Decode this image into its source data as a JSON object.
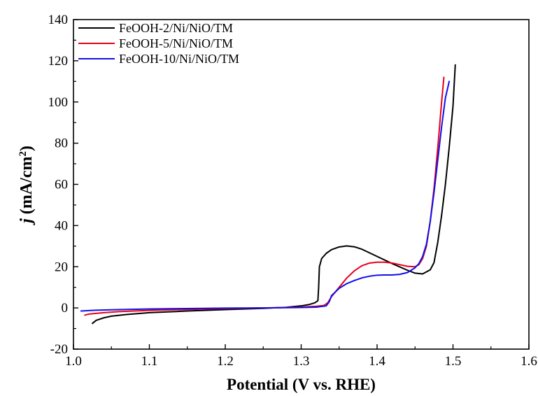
{
  "chart_data": {
    "type": "line",
    "title": "",
    "xlabel": "Potential (V vs. RHE)",
    "ylabel": {
      "italic": "j",
      "unit_open": " (mA/cm",
      "unit_sup": "2",
      "unit_close": ")"
    },
    "xlim": [
      1.0,
      1.6
    ],
    "ylim": [
      -20,
      140
    ],
    "xticks": [
      1.0,
      1.1,
      1.2,
      1.3,
      1.4,
      1.5,
      1.6
    ],
    "xtick_labels": [
      "1.0",
      "1.1",
      "1.2",
      "1.3",
      "1.4",
      "1.5",
      "1.6"
    ],
    "yticks": [
      -20,
      0,
      20,
      40,
      60,
      80,
      100,
      120,
      140
    ],
    "ytick_labels": [
      "-20",
      "0",
      "20",
      "40",
      "60",
      "80",
      "100",
      "120",
      "140"
    ],
    "grid": false,
    "legend_position": "top-left",
    "series": [
      {
        "name": "FeOOH-2/Ni/NiO/TM",
        "color": "#000000",
        "points": [
          [
            1.025,
            -7.5
          ],
          [
            1.03,
            -6.0
          ],
          [
            1.04,
            -4.8
          ],
          [
            1.05,
            -4.0
          ],
          [
            1.07,
            -3.2
          ],
          [
            1.1,
            -2.3
          ],
          [
            1.15,
            -1.5
          ],
          [
            1.2,
            -0.8
          ],
          [
            1.25,
            -0.2
          ],
          [
            1.28,
            0.3
          ],
          [
            1.3,
            1.0
          ],
          [
            1.31,
            1.6
          ],
          [
            1.318,
            2.5
          ],
          [
            1.322,
            3.5
          ],
          [
            1.323,
            10.0
          ],
          [
            1.324,
            20.0
          ],
          [
            1.327,
            24.0
          ],
          [
            1.333,
            26.5
          ],
          [
            1.34,
            28.3
          ],
          [
            1.35,
            29.6
          ],
          [
            1.36,
            30.1
          ],
          [
            1.37,
            29.7
          ],
          [
            1.38,
            28.5
          ],
          [
            1.4,
            25.0
          ],
          [
            1.42,
            21.5
          ],
          [
            1.44,
            18.3
          ],
          [
            1.45,
            16.9
          ],
          [
            1.46,
            16.5
          ],
          [
            1.47,
            18.5
          ],
          [
            1.475,
            22.0
          ],
          [
            1.48,
            32.0
          ],
          [
            1.485,
            45.0
          ],
          [
            1.49,
            60.0
          ],
          [
            1.495,
            78.0
          ],
          [
            1.5,
            98.0
          ],
          [
            1.503,
            118.0
          ]
        ]
      },
      {
        "name": "FeOOH-5/Ni/NiO/TM",
        "color": "#e8001c",
        "points": [
          [
            1.015,
            -3.5
          ],
          [
            1.02,
            -3.0
          ],
          [
            1.04,
            -2.3
          ],
          [
            1.06,
            -1.8
          ],
          [
            1.1,
            -1.2
          ],
          [
            1.15,
            -0.7
          ],
          [
            1.2,
            -0.3
          ],
          [
            1.25,
            0.0
          ],
          [
            1.3,
            0.4
          ],
          [
            1.32,
            0.8
          ],
          [
            1.33,
            1.2
          ],
          [
            1.335,
            2.5
          ],
          [
            1.34,
            5.5
          ],
          [
            1.35,
            10.0
          ],
          [
            1.36,
            14.5
          ],
          [
            1.37,
            18.0
          ],
          [
            1.38,
            20.5
          ],
          [
            1.39,
            21.8
          ],
          [
            1.4,
            22.2
          ],
          [
            1.41,
            22.2
          ],
          [
            1.42,
            21.8
          ],
          [
            1.43,
            21.0
          ],
          [
            1.44,
            20.2
          ],
          [
            1.45,
            20.0
          ],
          [
            1.455,
            21.0
          ],
          [
            1.46,
            24.0
          ],
          [
            1.465,
            30.0
          ],
          [
            1.47,
            42.0
          ],
          [
            1.475,
            58.0
          ],
          [
            1.48,
            78.0
          ],
          [
            1.485,
            100.0
          ],
          [
            1.488,
            112.0
          ]
        ]
      },
      {
        "name": "FeOOH-10/Ni/NiO/TM",
        "color": "#1010e8",
        "points": [
          [
            1.01,
            -1.5
          ],
          [
            1.03,
            -1.1
          ],
          [
            1.06,
            -0.8
          ],
          [
            1.1,
            -0.5
          ],
          [
            1.15,
            -0.3
          ],
          [
            1.2,
            -0.1
          ],
          [
            1.25,
            0.0
          ],
          [
            1.3,
            0.2
          ],
          [
            1.32,
            0.4
          ],
          [
            1.333,
            1.0
          ],
          [
            1.337,
            3.0
          ],
          [
            1.34,
            6.0
          ],
          [
            1.35,
            9.5
          ],
          [
            1.36,
            11.8
          ],
          [
            1.37,
            13.3
          ],
          [
            1.38,
            14.6
          ],
          [
            1.39,
            15.4
          ],
          [
            1.4,
            15.9
          ],
          [
            1.41,
            16.0
          ],
          [
            1.42,
            16.0
          ],
          [
            1.43,
            16.3
          ],
          [
            1.44,
            17.2
          ],
          [
            1.45,
            19.5
          ],
          [
            1.455,
            21.5
          ],
          [
            1.46,
            25.0
          ],
          [
            1.465,
            31.0
          ],
          [
            1.47,
            42.0
          ],
          [
            1.475,
            56.0
          ],
          [
            1.48,
            72.0
          ],
          [
            1.485,
            88.0
          ],
          [
            1.49,
            102.0
          ],
          [
            1.495,
            110.0
          ]
        ]
      }
    ]
  }
}
